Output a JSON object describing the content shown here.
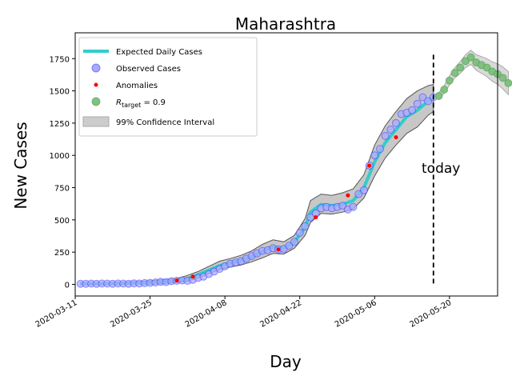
{
  "chart_data": {
    "type": "line",
    "title": "Maharashtra",
    "xlabel": "Day",
    "ylabel": "New Cases",
    "x_ticks": [
      "2020-03-11",
      "2020-03-25",
      "2020-04-08",
      "2020-04-22",
      "2020-05-06",
      "2020-05-20"
    ],
    "y_ticks": [
      "0",
      "250",
      "500",
      "750",
      "1000",
      "1250",
      "1500",
      "1750"
    ],
    "xlim": [
      "2020-03-11",
      "2020-05-29"
    ],
    "ylim": [
      -90,
      1950
    ],
    "today_date": "2020-05-17",
    "today_label": "today",
    "legend": {
      "placement": "top-left",
      "expected": "Expected Daily Cases",
      "observed": "Observed Cases",
      "anomalies": "Anomalies",
      "rtarget": "R_target = 0.9",
      "ci": "99% Confidence Interval"
    },
    "colors": {
      "expected": "#33cccc",
      "observed_fill": "#aaaaff",
      "observed_edge": "#2222ff",
      "anomaly": "#ff0000",
      "rtarget": "#80c080",
      "ci": "#999999"
    },
    "series": [
      {
        "name": "Expected Daily Cases",
        "x": [
          "2020-03-12",
          "2020-03-16",
          "2020-03-20",
          "2020-03-24",
          "2020-03-27",
          "2020-03-30",
          "2020-04-01",
          "2020-04-03",
          "2020-04-05",
          "2020-04-07",
          "2020-04-09",
          "2020-04-11",
          "2020-04-13",
          "2020-04-15",
          "2020-04-17",
          "2020-04-19",
          "2020-04-21",
          "2020-04-23",
          "2020-04-24",
          "2020-04-26",
          "2020-04-28",
          "2020-04-30",
          "2020-05-02",
          "2020-05-04",
          "2020-05-06",
          "2020-05-08",
          "2020-05-10",
          "2020-05-12",
          "2020-05-14",
          "2020-05-16",
          "2020-05-17"
        ],
        "y": [
          5,
          5,
          6,
          10,
          18,
          28,
          45,
          75,
          110,
          145,
          165,
          185,
          215,
          255,
          290,
          280,
          330,
          440,
          560,
          620,
          610,
          620,
          650,
          750,
          950,
          1100,
          1200,
          1300,
          1350,
          1420,
          1450
        ]
      },
      {
        "name": "99% Confidence Interval",
        "x": [
          "2020-03-12",
          "2020-03-16",
          "2020-03-20",
          "2020-03-24",
          "2020-03-27",
          "2020-03-30",
          "2020-04-01",
          "2020-04-03",
          "2020-04-05",
          "2020-04-07",
          "2020-04-09",
          "2020-04-11",
          "2020-04-13",
          "2020-04-15",
          "2020-04-17",
          "2020-04-19",
          "2020-04-21",
          "2020-04-23",
          "2020-04-24",
          "2020-04-26",
          "2020-04-28",
          "2020-04-30",
          "2020-05-02",
          "2020-05-04",
          "2020-05-06",
          "2020-05-08",
          "2020-05-10",
          "2020-05-12",
          "2020-05-14",
          "2020-05-16",
          "2020-05-17"
        ],
        "upper": [
          15,
          15,
          18,
          25,
          35,
          45,
          70,
          100,
          140,
          180,
          200,
          225,
          260,
          310,
          345,
          330,
          380,
          510,
          650,
          700,
          690,
          710,
          740,
          850,
          1080,
          1230,
          1340,
          1440,
          1500,
          1540,
          1550
        ],
        "lower": [
          0,
          0,
          0,
          0,
          5,
          15,
          25,
          50,
          85,
          115,
          135,
          150,
          175,
          205,
          240,
          235,
          280,
          380,
          480,
          550,
          545,
          560,
          585,
          670,
          840,
          980,
          1080,
          1170,
          1220,
          1310,
          1340
        ]
      },
      {
        "name": "Observed Cases",
        "x": [
          "2020-03-12",
          "2020-03-13",
          "2020-03-14",
          "2020-03-15",
          "2020-03-16",
          "2020-03-17",
          "2020-03-18",
          "2020-03-19",
          "2020-03-20",
          "2020-03-21",
          "2020-03-22",
          "2020-03-23",
          "2020-03-24",
          "2020-03-25",
          "2020-03-26",
          "2020-03-27",
          "2020-03-28",
          "2020-03-29",
          "2020-03-30",
          "2020-03-31",
          "2020-04-01",
          "2020-04-02",
          "2020-04-03",
          "2020-04-04",
          "2020-04-05",
          "2020-04-06",
          "2020-04-07",
          "2020-04-08",
          "2020-04-09",
          "2020-04-10",
          "2020-04-11",
          "2020-04-12",
          "2020-04-13",
          "2020-04-14",
          "2020-04-15",
          "2020-04-16",
          "2020-04-17",
          "2020-04-18",
          "2020-04-19",
          "2020-04-20",
          "2020-04-21",
          "2020-04-22",
          "2020-04-23",
          "2020-04-24",
          "2020-04-25",
          "2020-04-26",
          "2020-04-27",
          "2020-04-28",
          "2020-04-29",
          "2020-04-30",
          "2020-05-01",
          "2020-05-02",
          "2020-05-03",
          "2020-05-04",
          "2020-05-05",
          "2020-05-06",
          "2020-05-07",
          "2020-05-08",
          "2020-05-09",
          "2020-05-10",
          "2020-05-11",
          "2020-05-12",
          "2020-05-13",
          "2020-05-14",
          "2020-05-15",
          "2020-05-16",
          "2020-05-17"
        ],
        "y": [
          5,
          5,
          6,
          4,
          7,
          6,
          5,
          7,
          6,
          5,
          8,
          7,
          10,
          12,
          15,
          20,
          18,
          25,
          28,
          30,
          28,
          35,
          50,
          60,
          80,
          100,
          120,
          140,
          160,
          170,
          180,
          200,
          220,
          240,
          260,
          265,
          280,
          270,
          275,
          300,
          330,
          400,
          450,
          520,
          550,
          590,
          600,
          590,
          600,
          610,
          580,
          600,
          700,
          730,
          920,
          1000,
          1050,
          1150,
          1200,
          1250,
          1320,
          1330,
          1350,
          1400,
          1450,
          1420,
          1450
        ]
      },
      {
        "name": "Anomalies",
        "x": [
          "2020-03-30",
          "2020-04-02",
          "2020-04-18",
          "2020-04-25",
          "2020-05-01",
          "2020-05-05",
          "2020-05-10"
        ],
        "y": [
          30,
          60,
          270,
          520,
          690,
          920,
          1140
        ]
      },
      {
        "name": "R_target = 0.9",
        "x": [
          "2020-05-18",
          "2020-05-19",
          "2020-05-20",
          "2020-05-21",
          "2020-05-22",
          "2020-05-23",
          "2020-05-24",
          "2020-05-25",
          "2020-05-26",
          "2020-05-27",
          "2020-05-28",
          "2020-05-29",
          "2020-05-30",
          "2020-05-31"
        ],
        "y": [
          1460,
          1510,
          1580,
          1640,
          1680,
          1730,
          1760,
          1720,
          1700,
          1680,
          1650,
          1630,
          1600,
          1560
        ]
      }
    ]
  }
}
